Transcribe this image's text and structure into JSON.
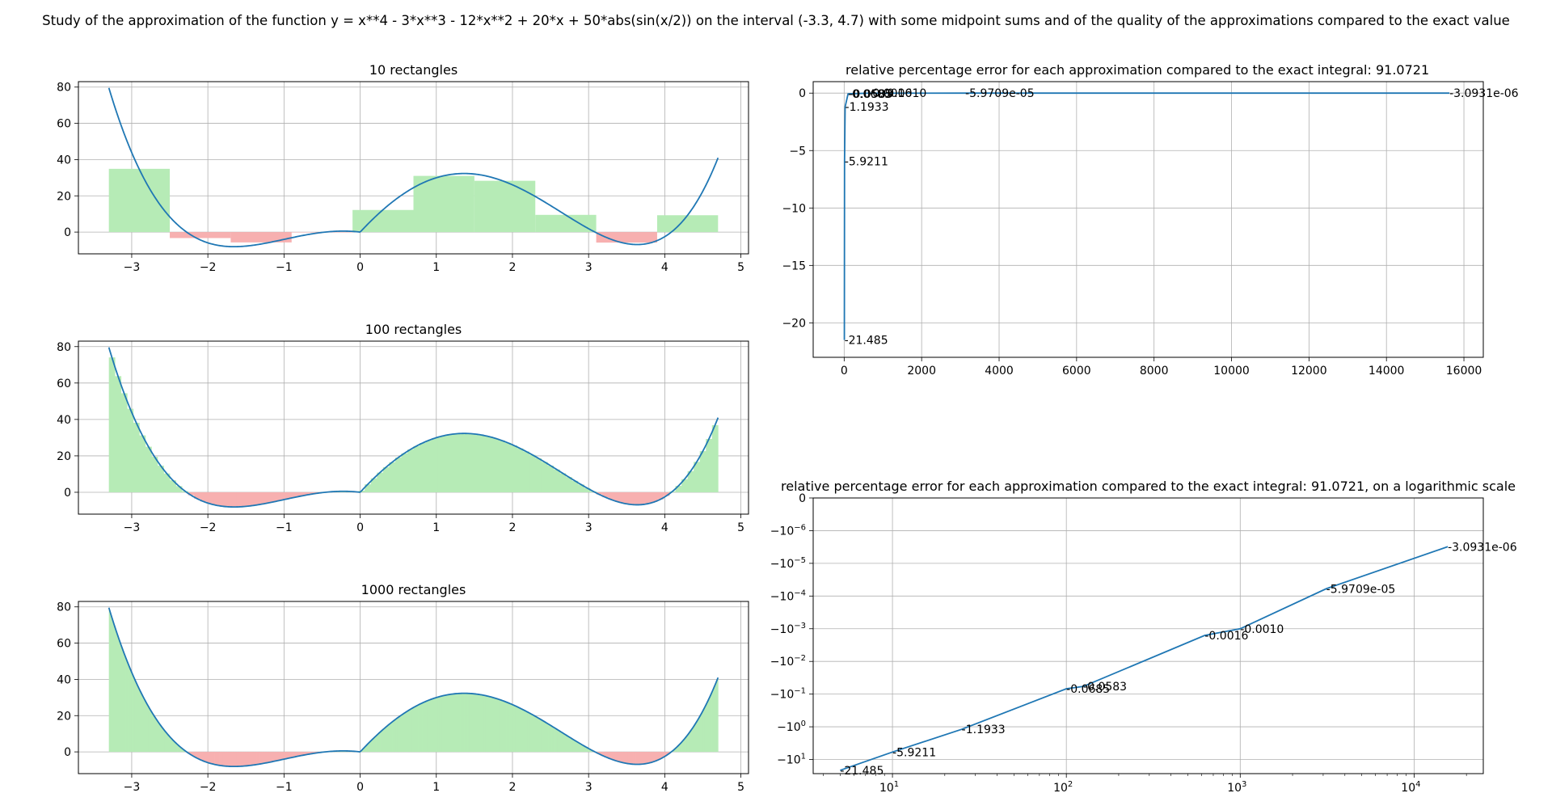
{
  "figure_title": "Study of the approximation of the function y = x**4 - 3*x**3 - 12*x**2 + 20*x + 50*abs(sin(x/2)) on the interval (-3.3, 4.7) with some midpoint sums and of the quality of the approximations compared to the exact value",
  "colors": {
    "curve": "#1f77b4",
    "positive": "#b6ebb6",
    "negative": "#f7b0b0",
    "grid": "#b0b0b0"
  },
  "chart_data": [
    {
      "id": "rect10",
      "type": "bar",
      "title": "10 rectangles",
      "xlabel": "",
      "ylabel": "",
      "xlim": [
        -3.7,
        5.1
      ],
      "ylim": [
        -12,
        83
      ],
      "xticks": [
        -3,
        -2,
        -1,
        0,
        1,
        2,
        3,
        4,
        5
      ],
      "xtick_labels": [
        "−3",
        "−2",
        "−1",
        "0",
        "1",
        "2",
        "3",
        "4",
        "5"
      ],
      "yticks": [
        0,
        20,
        40,
        60,
        80
      ],
      "ytick_labels": [
        "0",
        "20",
        "40",
        "60",
        "80"
      ],
      "grid": true,
      "function": "x**4 - 3*x**3 - 12*x**2 + 20*x + 50*abs(sin(x/2))",
      "interval": [
        -3.3,
        4.7
      ],
      "rect_width": 0.8,
      "values": [
        34.9,
        -3.3,
        -5.7,
        -0.1,
        12.2,
        31.0,
        28.3,
        9.5,
        -5.8,
        9.3
      ]
    },
    {
      "id": "rect100",
      "type": "area",
      "title": "100 rectangles",
      "xlabel": "",
      "ylabel": "",
      "xlim": [
        -3.7,
        5.1
      ],
      "ylim": [
        -12,
        83
      ],
      "xticks": [
        -3,
        -2,
        -1,
        0,
        1,
        2,
        3,
        4,
        5
      ],
      "xtick_labels": [
        "−3",
        "−2",
        "−1",
        "0",
        "1",
        "2",
        "3",
        "4",
        "5"
      ],
      "yticks": [
        0,
        20,
        40,
        60,
        80
      ],
      "ytick_labels": [
        "0",
        "20",
        "40",
        "60",
        "80"
      ],
      "grid": true,
      "function": "x**4 - 3*x**3 - 12*x**2 + 20*x + 50*abs(sin(x/2))",
      "interval": [
        -3.3,
        4.7
      ],
      "n_rectangles": 100
    },
    {
      "id": "rect1000",
      "type": "area",
      "title": "1000 rectangles",
      "xlabel": "",
      "ylabel": "",
      "xlim": [
        -3.7,
        5.1
      ],
      "ylim": [
        -12,
        83
      ],
      "xticks": [
        -3,
        -2,
        -1,
        0,
        1,
        2,
        3,
        4,
        5
      ],
      "xtick_labels": [
        "−3",
        "−2",
        "−1",
        "0",
        "1",
        "2",
        "3",
        "4",
        "5"
      ],
      "yticks": [
        0,
        20,
        40,
        60,
        80
      ],
      "ytick_labels": [
        "0",
        "20",
        "40",
        "60",
        "80"
      ],
      "grid": true,
      "function": "x**4 - 3*x**3 - 12*x**2 + 20*x + 50*abs(sin(x/2))",
      "interval": [
        -3.3,
        4.7
      ],
      "n_rectangles": 1000
    },
    {
      "id": "err_lin",
      "type": "line",
      "title": "relative percentage error for each approximation compared to the exact integral: 91.0721",
      "xlabel": "",
      "ylabel": "",
      "xlim": [
        -800,
        16500
      ],
      "ylim": [
        -23.0,
        1.0
      ],
      "xticks": [
        0,
        2000,
        4000,
        6000,
        8000,
        10000,
        12000,
        14000,
        16000
      ],
      "xtick_labels": [
        "0",
        "2000",
        "4000",
        "6000",
        "8000",
        "10000",
        "12000",
        "14000",
        "16000"
      ],
      "yticks": [
        0,
        -5,
        -10,
        -15,
        -20
      ],
      "ytick_labels": [
        "0",
        "−5",
        "−10",
        "−15",
        "−20"
      ],
      "grid": true,
      "x": [
        5,
        10,
        25,
        100,
        125,
        625,
        1000,
        3125,
        15625
      ],
      "y": [
        -21.485,
        -5.9211,
        -1.1933,
        -0.0685,
        -0.0583,
        -0.0016,
        -0.001,
        -5.9709e-05,
        -3.0931e-06
      ],
      "labels": [
        "-21.485",
        "-5.9211",
        "-1.1933",
        "-0.0685",
        "-0.0583",
        "-0.0016",
        "-0.0010",
        "-5.9709e-05",
        "-3.0931e-06"
      ]
    },
    {
      "id": "err_log",
      "type": "line",
      "title": "relative percentage error for each approximation compared to the exact integral: 91.0721, on a logarithmic scale",
      "xlabel": "",
      "ylabel": "",
      "xscale": "log",
      "yscale": "symlog",
      "xlim": [
        3.5,
        25000
      ],
      "xticks": [
        10,
        100,
        1000,
        10000
      ],
      "xtick_base": "10",
      "xtick_exps": [
        "1",
        "2",
        "3",
        "4"
      ],
      "ytick_values": [
        0,
        -1e-06,
        -1e-05,
        -0.0001,
        -0.001,
        -0.01,
        -0.1,
        -1,
        -10
      ],
      "ytick_base": "−10",
      "ytick_zero": "0",
      "ytick_exps": [
        "",
        "−6",
        "−5",
        "−4",
        "−3",
        "−2",
        "−1",
        "0",
        "1"
      ],
      "grid": true,
      "x": [
        5,
        10,
        25,
        100,
        125,
        625,
        1000,
        3125,
        15625
      ],
      "y": [
        -21.485,
        -5.9211,
        -1.1933,
        -0.0685,
        -0.0583,
        -0.0016,
        -0.001,
        -5.9709e-05,
        -3.0931e-06
      ],
      "labels": [
        "-21.485",
        "-5.9211",
        "-1.1933",
        "-0.0685",
        "-0.0583",
        "-0.0016",
        "-0.0010",
        "-5.9709e-05",
        "-3.0931e-06"
      ]
    }
  ]
}
